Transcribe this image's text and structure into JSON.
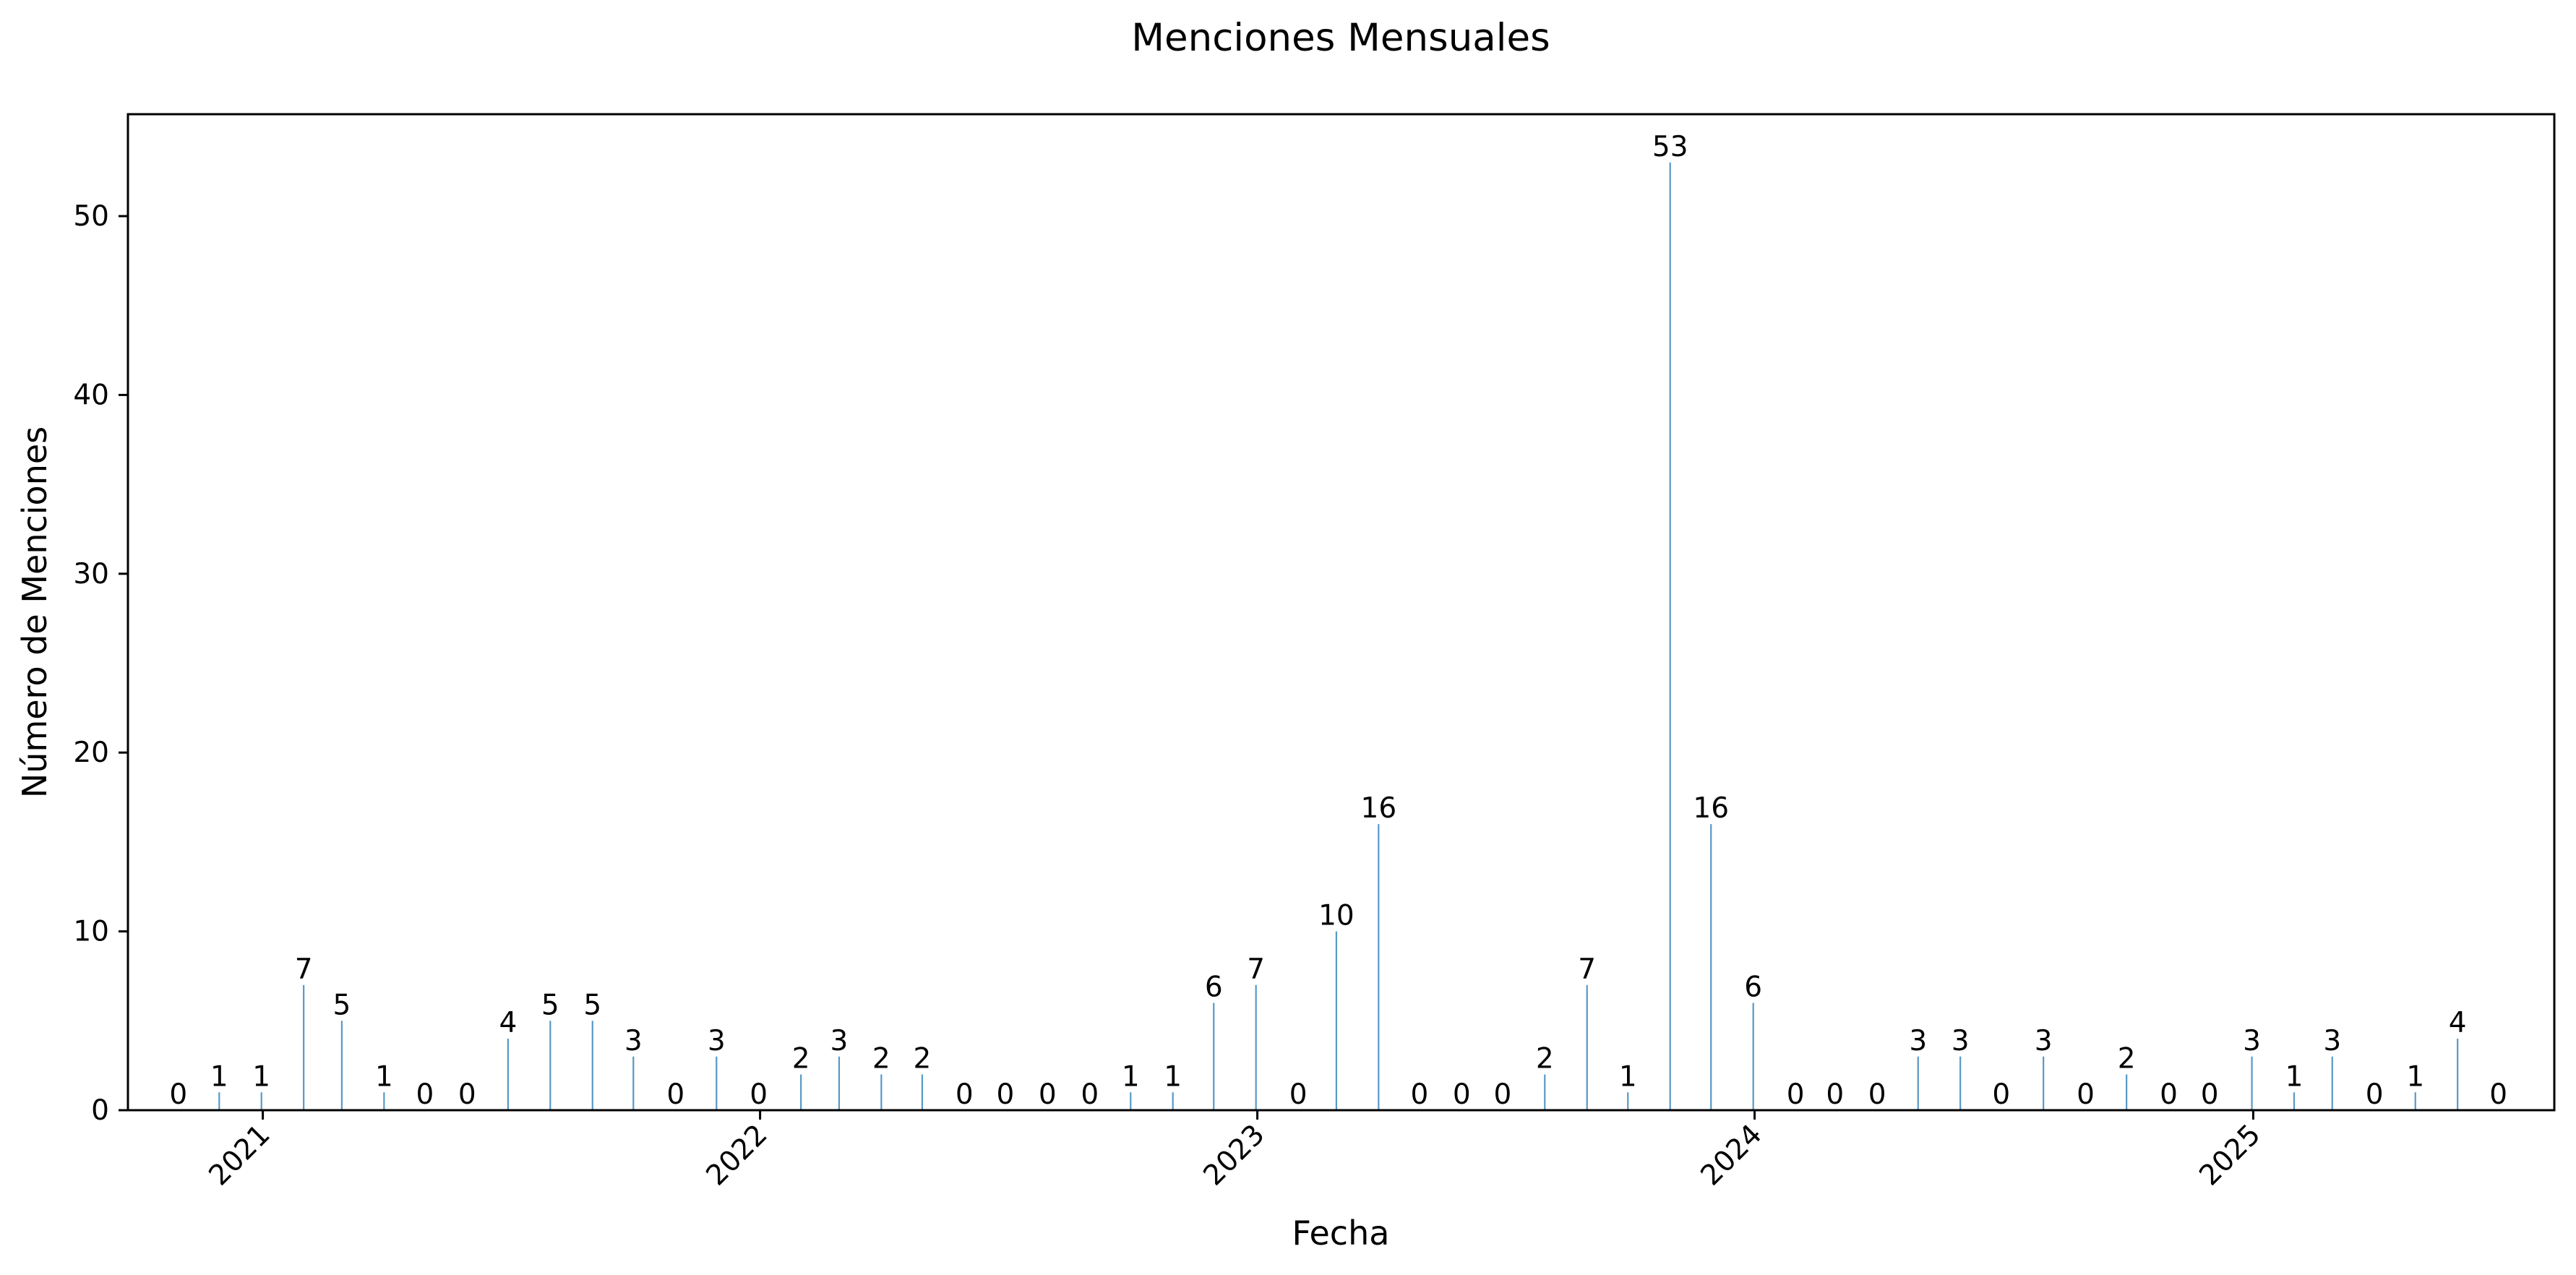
{
  "chart_data": {
    "type": "bar",
    "title": "Menciones Mensuales",
    "xlabel": "Fecha",
    "ylabel": "Número de Menciones",
    "ylim": [
      0,
      55.7
    ],
    "yticks": [
      0,
      10,
      20,
      30,
      40,
      50
    ],
    "xlim": [
      "2020-09-24",
      "2025-08-10"
    ],
    "xticks": [
      {
        "date": "2021-01-01",
        "label": "2021"
      },
      {
        "date": "2022-01-01",
        "label": "2022"
      },
      {
        "date": "2023-01-01",
        "label": "2023"
      },
      {
        "date": "2024-01-01",
        "label": "2024"
      },
      {
        "date": "2025-01-01",
        "label": "2025"
      }
    ],
    "grid": false,
    "legend": "none",
    "bar_color": "#1f77b4",
    "categories": [
      "2020-10",
      "2020-11",
      "2020-12",
      "2021-01",
      "2021-02",
      "2021-03",
      "2021-04",
      "2021-05",
      "2021-06",
      "2021-07",
      "2021-08",
      "2021-09",
      "2021-10",
      "2021-11",
      "2021-12",
      "2022-01",
      "2022-02",
      "2022-03",
      "2022-04",
      "2022-05",
      "2022-06",
      "2022-07",
      "2022-08",
      "2022-09",
      "2022-10",
      "2022-11",
      "2022-12",
      "2023-01",
      "2023-02",
      "2023-03",
      "2023-04",
      "2023-05",
      "2023-06",
      "2023-07",
      "2023-08",
      "2023-09",
      "2023-10",
      "2023-11",
      "2023-12",
      "2024-01",
      "2024-02",
      "2024-03",
      "2024-04",
      "2024-05",
      "2024-06",
      "2024-07",
      "2024-08",
      "2024-09",
      "2024-10",
      "2024-11",
      "2024-12",
      "2025-01",
      "2025-02",
      "2025-03",
      "2025-04",
      "2025-05",
      "2025-06"
    ],
    "values": [
      0,
      1,
      1,
      7,
      5,
      1,
      0,
      0,
      4,
      5,
      5,
      3,
      0,
      3,
      0,
      2,
      3,
      2,
      2,
      0,
      0,
      0,
      0,
      1,
      1,
      6,
      7,
      0,
      10,
      16,
      0,
      0,
      0,
      2,
      7,
      1,
      53,
      16,
      6,
      0,
      0,
      0,
      3,
      3,
      0,
      3,
      0,
      2,
      0,
      0,
      3,
      1,
      3,
      0,
      1,
      4,
      0
    ]
  }
}
